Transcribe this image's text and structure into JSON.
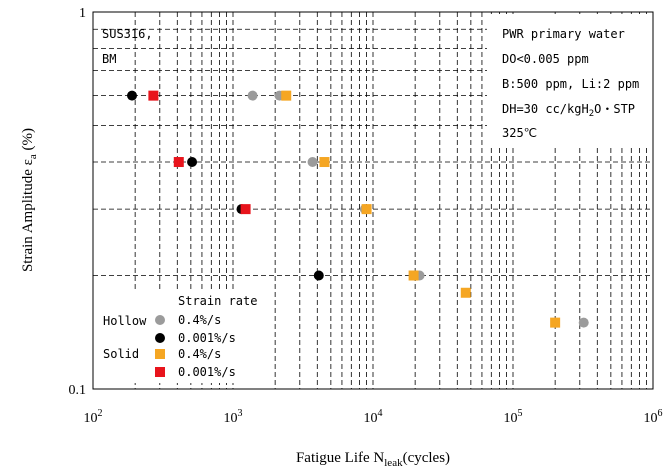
{
  "chart_data": {
    "type": "scatter",
    "x_scale": "log",
    "y_scale": "log",
    "xlim": [
      100,
      1000000
    ],
    "ylim": [
      0.1,
      1
    ],
    "grid": "dashed-log",
    "xlabel": {
      "main": "Fatigue Life N",
      "sub": "leak",
      "tail": "(cycles)"
    },
    "ylabel": {
      "main": "Strain Amplitude ε",
      "sub": "a",
      "tail": " (%)"
    },
    "x_ticks": [
      {
        "value": 100,
        "base": "10",
        "exp": "2"
      },
      {
        "value": 1000,
        "base": "10",
        "exp": "3"
      },
      {
        "value": 10000,
        "base": "10",
        "exp": "4"
      },
      {
        "value": 100000,
        "base": "10",
        "exp": "5"
      },
      {
        "value": 1000000,
        "base": "10",
        "exp": "6"
      }
    ],
    "y_ticks": [
      {
        "value": 1,
        "label": "1"
      },
      {
        "value": 0.1,
        "label": "0.1"
      }
    ],
    "annotation_left": [
      "SUS316,",
      "BM"
    ],
    "annotation_right": {
      "line1": "PWR primary water",
      "line2": "DO<0.005 ppm",
      "line3": "B:500 ppm, Li:2 ppm",
      "line4_a": "DH=30 cc/kgH",
      "line4_sub": "2",
      "line4_b": "O・STP",
      "line5": "325℃"
    },
    "legend": {
      "placement": "bottom-left",
      "title": "Strain rate",
      "group_hollow": "Hollow",
      "group_solid": "Solid",
      "entries": [
        {
          "label": "0.4%/s",
          "shape": "circle",
          "color": "#9b9b9b"
        },
        {
          "label": "0.001%/s",
          "shape": "circle",
          "color": "#000000"
        },
        {
          "label": "0.4%/s",
          "shape": "square",
          "color": "#f5a623"
        },
        {
          "label": "0.001%/s",
          "shape": "square",
          "color": "#e8141c"
        }
      ]
    },
    "series": [
      {
        "group": "Hollow",
        "rate": "0.4%/s",
        "shape": "circle",
        "color": "#9b9b9b",
        "points": [
          [
            1380,
            0.6
          ],
          [
            2150,
            0.6
          ],
          [
            3700,
            0.4
          ],
          [
            8750,
            0.3
          ],
          [
            21500,
            0.2
          ],
          [
            320000,
            0.15
          ]
        ]
      },
      {
        "group": "Hollow",
        "rate": "0.001%/s",
        "shape": "circle",
        "color": "#000000",
        "points": [
          [
            190,
            0.6
          ],
          [
            510,
            0.4
          ],
          [
            1150,
            0.3
          ],
          [
            4100,
            0.2
          ]
        ]
      },
      {
        "group": "Solid",
        "rate": "0.4%/s",
        "shape": "square",
        "color": "#f5a623",
        "points": [
          [
            2400,
            0.6
          ],
          [
            4500,
            0.4
          ],
          [
            9000,
            0.3
          ],
          [
            19500,
            0.2
          ],
          [
            46000,
            0.18
          ],
          [
            200000,
            0.15
          ]
        ]
      },
      {
        "group": "Solid",
        "rate": "0.001%/s",
        "shape": "square",
        "color": "#e8141c",
        "points": [
          [
            270,
            0.6
          ],
          [
            410,
            0.4
          ],
          [
            1230,
            0.3
          ]
        ]
      }
    ]
  }
}
